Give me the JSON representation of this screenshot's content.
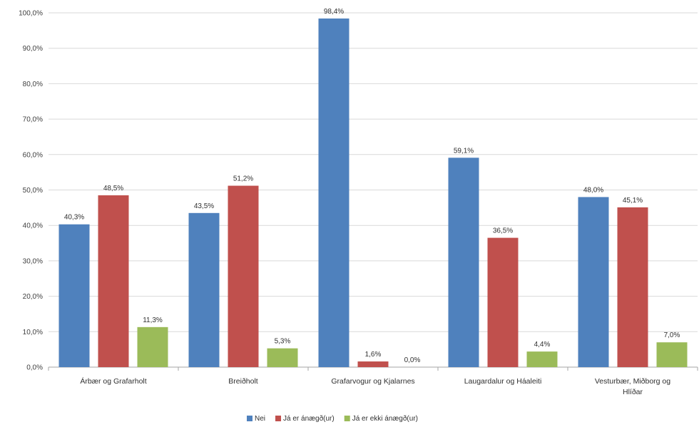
{
  "chart_data": {
    "type": "bar",
    "categories": [
      [
        "Árbær og Grafarholt"
      ],
      [
        "Breiðholt"
      ],
      [
        "Grafarvogur og Kjalarnes"
      ],
      [
        "Laugardalur og Háaleiti"
      ],
      [
        "Vesturbær, Miðborg og",
        "Hlíðar"
      ]
    ],
    "series": [
      {
        "name": "Nei",
        "color": "#4F81BD",
        "values": [
          40.3,
          43.5,
          98.4,
          59.1,
          48.0
        ],
        "labels": [
          "40,3%",
          "43,5%",
          "98,4%",
          "59,1%",
          "48,0%"
        ]
      },
      {
        "name": "Já er ánægð(ur)",
        "color": "#C0504D",
        "values": [
          48.5,
          51.2,
          1.6,
          36.5,
          45.1
        ],
        "labels": [
          "48,5%",
          "51,2%",
          "1,6%",
          "36,5%",
          "45,1%"
        ]
      },
      {
        "name": "Já er ekki ánægð(ur)",
        "color": "#9BBB59",
        "values": [
          11.3,
          5.3,
          0.0,
          4.4,
          7.0
        ],
        "labels": [
          "11,3%",
          "5,3%",
          "0,0%",
          "4,4%",
          "7,0%"
        ]
      }
    ],
    "ylim": [
      0,
      100
    ],
    "yticks": [
      0,
      10,
      20,
      30,
      40,
      50,
      60,
      70,
      80,
      90,
      100
    ],
    "ytick_labels": [
      "0,0%",
      "10,0%",
      "20,0%",
      "30,0%",
      "40,0%",
      "50,0%",
      "60,0%",
      "70,0%",
      "80,0%",
      "90,0%",
      "100,0%"
    ],
    "grid": true,
    "legend_position": "bottom",
    "title": "",
    "xlabel": "",
    "ylabel": ""
  }
}
